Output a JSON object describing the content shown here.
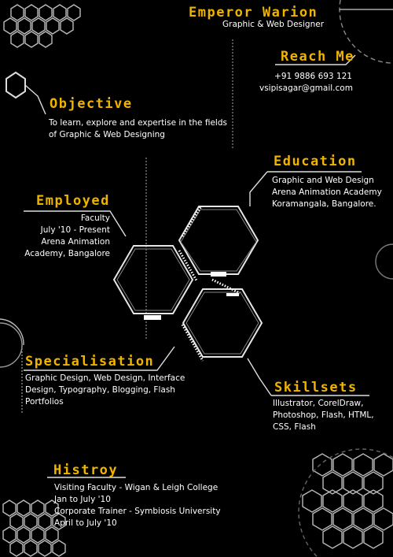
{
  "header": {
    "name": "Emperor Warion",
    "role": "Graphic & Web Designer"
  },
  "contact": {
    "heading": "Reach Me",
    "phone": "+91 9886 693 121",
    "email": "vsipisagar@gmail.com"
  },
  "objective": {
    "heading": "Objective",
    "lines": [
      "To learn, explore and expertise in the fields",
      "of Graphic & Web Designing"
    ]
  },
  "education": {
    "heading": "Education",
    "lines": [
      "Graphic and Web Design",
      "Arena Animation Academy",
      "Koramangala, Bangalore."
    ]
  },
  "employed": {
    "heading": "Employed",
    "lines": [
      "Faculty",
      "July '10 - Present",
      "Arena Animation",
      "Academy, Bangalore"
    ]
  },
  "specialisation": {
    "heading": "Specialisation",
    "lines": [
      "Graphic Design, Web Design, Interface",
      "Design, Typography, Blogging, Flash",
      "Portfolios"
    ]
  },
  "skillsets": {
    "heading": "Skillsets",
    "lines": [
      "Illustrator, CorelDraw,",
      "Photoshop, Flash, HTML,",
      "CSS, Flash"
    ]
  },
  "history": {
    "heading": "Histroy",
    "lines": [
      "Visiting Faculty - Wigan & Leigh College",
      "Jan to July '10",
      "Corporate Trainer - Symbiosis University",
      "April to July '10"
    ]
  },
  "colors": {
    "accent": "#f0b400",
    "background": "#000000",
    "text": "#ffffff",
    "lines": "#cccccc"
  }
}
